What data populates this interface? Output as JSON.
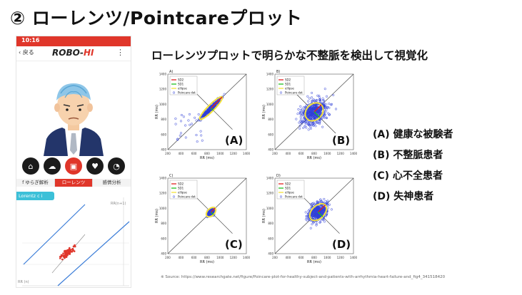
{
  "slide": {
    "title": "② ローレンツ/Pointcareプロット",
    "subtitle": "ローレンツプロットで明らかな不整脈を検出して視覚化"
  },
  "phone": {
    "status_time": "10:16",
    "back_label": "戻る",
    "logo_main": "ROBO-",
    "logo_accent": "HI",
    "tabs": [
      {
        "label": "f ゆらぎ解析",
        "active": false
      },
      {
        "label": "ローレンツ",
        "active": true
      },
      {
        "label": "感情分析",
        "active": false
      }
    ],
    "chip_label": "Lorentz c i",
    "plot_axis_y": "RR(n+1)",
    "plot_axis_x": "RR (n)",
    "accent_color": "#e0362a"
  },
  "figure": {
    "panels": [
      {
        "panel_id": "A)",
        "big_label": "(A)"
      },
      {
        "panel_id": "B)",
        "big_label": "(B)"
      },
      {
        "panel_id": "C)",
        "big_label": "(C)"
      },
      {
        "panel_id": "D)",
        "big_label": "(D)"
      }
    ],
    "plot_legend": [
      "SD2",
      "SD1",
      "ellipse",
      "Poincare dot"
    ],
    "x_axis_label": "RR (ms)",
    "y_axis_label": "RR (ms)",
    "x_ticks": [
      "200",
      "400",
      "600",
      "800",
      "1000",
      "1200",
      "1400"
    ],
    "y_ticks": [
      "1400",
      "1300",
      "1200",
      "1100",
      "1000",
      "900",
      "800",
      "700",
      "600",
      "500",
      "400"
    ],
    "source": "※ Source: https://www.researchgate.net/figure/Poincare-plot-for-healthy-subject-and-patients-with-arrhythmia-heart-failure-and_fig4_341518420"
  },
  "legend": [
    "(A) 健康な被験者",
    "(B) 不整脈患者",
    "(C) 心不全患者",
    "(D) 失神患者"
  ]
}
